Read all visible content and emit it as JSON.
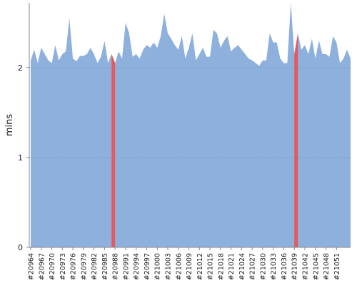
{
  "chart_data": {
    "type": "area",
    "ylabel": "mins",
    "xlabel": "",
    "ylim": [
      0,
      2.72
    ],
    "yticks": [
      "0",
      "1",
      "2"
    ],
    "x_tick_labels": [
      "#20964",
      "#20967",
      "#20970",
      "#20973",
      "#20976",
      "#20979",
      "#20982",
      "#20985",
      "#20988",
      "#20991",
      "#20994",
      "#20997",
      "#21000",
      "#21003",
      "#21006",
      "#21009",
      "#21012",
      "#21015",
      "#21018",
      "#21021",
      "#21024",
      "#21027",
      "#21030",
      "#21033",
      "#21036",
      "#21039",
      "#21042",
      "#21045",
      "#21048",
      "#21051"
    ],
    "series": [
      {
        "values": [
          2.08,
          2.2,
          2.05,
          2.22,
          2.15,
          2.08,
          2.05,
          2.25,
          2.08,
          2.15,
          2.18,
          2.55,
          2.1,
          2.07,
          2.13,
          2.13,
          2.15,
          2.22,
          2.15,
          2.05,
          2.12,
          2.3,
          2.05,
          2.15,
          2.05,
          2.18,
          2.1,
          2.5,
          2.38,
          2.12,
          2.15,
          2.1,
          2.2,
          2.25,
          2.22,
          2.28,
          2.22,
          2.35,
          2.6,
          2.38,
          2.32,
          2.25,
          2.2,
          2.35,
          2.1,
          2.22,
          2.38,
          2.08,
          2.15,
          2.22,
          2.12,
          2.12,
          2.42,
          2.38,
          2.22,
          2.3,
          2.35,
          2.18,
          2.22,
          2.25,
          2.2,
          2.15,
          2.1,
          2.08,
          2.05,
          2.02,
          2.08,
          2.08,
          2.38,
          2.28,
          2.28,
          2.1,
          2.05,
          2.05,
          2.72,
          2.15,
          2.38,
          2.2,
          2.25,
          2.15,
          2.32,
          2.1,
          2.3,
          2.15,
          2.15,
          2.12,
          2.35,
          2.28,
          2.05,
          2.1,
          2.2,
          2.1
        ]
      }
    ],
    "highlight_indices": [
      23,
      75
    ],
    "grid": true,
    "colors": {
      "area": "#8db0dc",
      "highlight": "#e8585a",
      "grid": "#7a8fa8",
      "axis": "#888888",
      "text": "#222222"
    }
  }
}
